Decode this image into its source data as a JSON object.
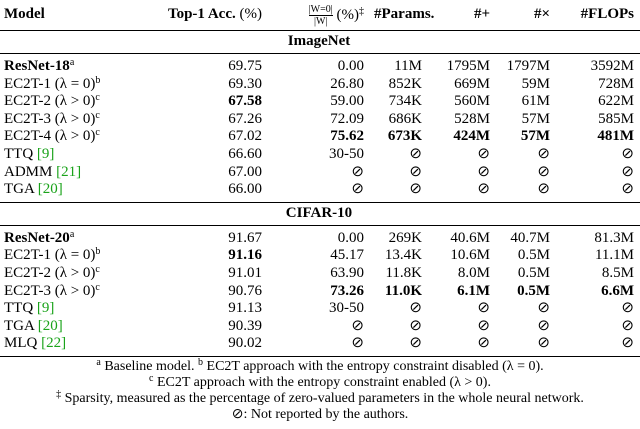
{
  "header": {
    "model": "Model",
    "top1": "Top-1 Acc.",
    "top1_unit": "(%)",
    "sparsity_num": "|W=0|",
    "sparsity_den": "|W|",
    "sparsity_unit": "(%)",
    "sparsity_sup": "‡",
    "params": "#Params.",
    "adds": "#+",
    "mults": "#×",
    "flops": "#FLOPs"
  },
  "sections": [
    {
      "title": "ImageNet",
      "rows": [
        {
          "model": "ResNet-18",
          "model_bold": true,
          "sup": "a",
          "values": [
            "69.75",
            "0.00",
            "11M",
            "1795M",
            "1797M",
            "3592M"
          ],
          "bold": []
        },
        {
          "model": "EC2T-1 (λ = 0)",
          "sup": "b",
          "values": [
            "69.30",
            "26.80",
            "852K",
            "669M",
            "59M",
            "728M"
          ],
          "bold": []
        },
        {
          "model": "EC2T-2 (λ > 0)",
          "sup": "c",
          "values": [
            "67.58",
            "59.00",
            "734K",
            "560M",
            "61M",
            "622M"
          ],
          "bold": [
            0
          ]
        },
        {
          "model": "EC2T-3 (λ > 0)",
          "sup": "c",
          "values": [
            "67.26",
            "72.09",
            "686K",
            "528M",
            "57M",
            "585M"
          ],
          "bold": []
        },
        {
          "model": "EC2T-4 (λ > 0)",
          "sup": "c",
          "values": [
            "67.02",
            "75.62",
            "673K",
            "424M",
            "57M",
            "481M"
          ],
          "bold": [
            1,
            2,
            3,
            4,
            5
          ]
        },
        {
          "model": "TTQ",
          "cite": "[9]",
          "values": [
            "66.60",
            "30-50",
            "⊘",
            "⊘",
            "⊘",
            "⊘"
          ],
          "bold": []
        },
        {
          "model": "ADMM",
          "cite": "[21]",
          "values": [
            "67.00",
            "⊘",
            "⊘",
            "⊘",
            "⊘",
            "⊘"
          ],
          "bold": []
        },
        {
          "model": "TGA",
          "cite": "[20]",
          "values": [
            "66.00",
            "⊘",
            "⊘",
            "⊘",
            "⊘",
            "⊘"
          ],
          "bold": []
        }
      ]
    },
    {
      "title": "CIFAR-10",
      "rows": [
        {
          "model": "ResNet-20",
          "model_bold": true,
          "sup": "a",
          "values": [
            "91.67",
            "0.00",
            "269K",
            "40.6M",
            "40.7M",
            "81.3M"
          ],
          "bold": []
        },
        {
          "model": "EC2T-1 (λ = 0)",
          "sup": "b",
          "values": [
            "91.16",
            "45.17",
            "13.4K",
            "10.6M",
            "0.5M",
            "11.1M"
          ],
          "bold": [
            0
          ]
        },
        {
          "model": "EC2T-2 (λ > 0)",
          "sup": "c",
          "values": [
            "91.01",
            "63.90",
            "11.8K",
            "8.0M",
            "0.5M",
            "8.5M"
          ],
          "bold": []
        },
        {
          "model": "EC2T-3 (λ > 0)",
          "sup": "c",
          "values": [
            "90.76",
            "73.26",
            "11.0K",
            "6.1M",
            "0.5M",
            "6.6M"
          ],
          "bold": [
            1,
            2,
            3,
            4,
            5
          ]
        },
        {
          "model": "TTQ",
          "cite": "[9]",
          "values": [
            "91.13",
            "30-50",
            "⊘",
            "⊘",
            "⊘",
            "⊘"
          ],
          "bold": []
        },
        {
          "model": "TGA",
          "cite": "[20]",
          "values": [
            "90.39",
            "⊘",
            "⊘",
            "⊘",
            "⊘",
            "⊘"
          ],
          "bold": []
        },
        {
          "model": "MLQ",
          "cite": "[22]",
          "values": [
            "90.02",
            "⊘",
            "⊘",
            "⊘",
            "⊘",
            "⊘"
          ],
          "bold": []
        }
      ]
    }
  ],
  "footnotes": [
    [
      {
        "mark": "a",
        "sup": true,
        "text": "Baseline model."
      },
      {
        "mark": "b",
        "sup": true,
        "text": "EC2T approach with the entropy constraint disabled (λ = 0)."
      }
    ],
    [
      {
        "mark": "c",
        "sup": true,
        "text": "EC2T approach with the entropy constraint enabled (λ > 0)."
      }
    ],
    [
      {
        "mark": "‡",
        "sup": true,
        "text": "Sparsity, measured as the percentage of zero-valued parameters in the whole neural network."
      }
    ],
    [
      {
        "mark": "⊘",
        "sup": false,
        "text": ": Not reported by the authors."
      }
    ]
  ]
}
